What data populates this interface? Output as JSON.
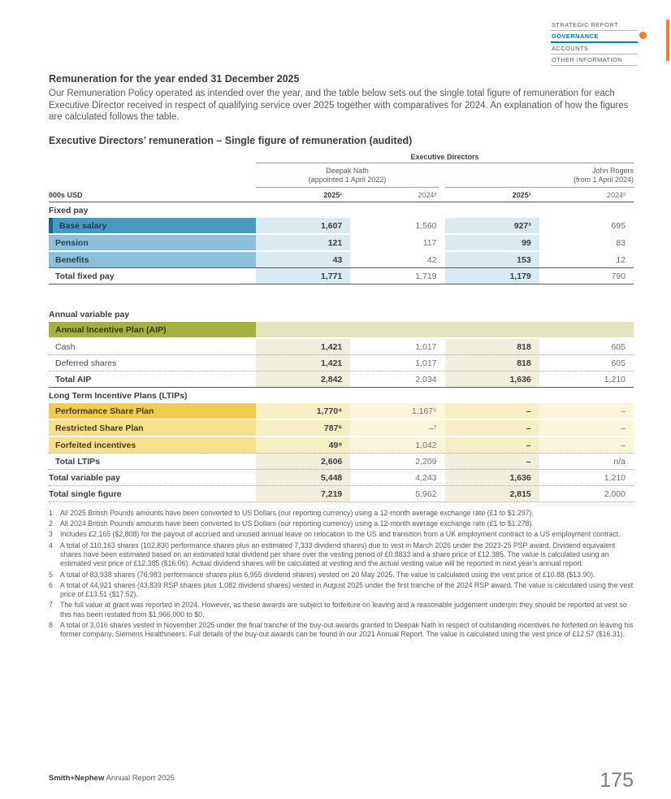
{
  "nav": {
    "items": [
      {
        "label": "STRATEGIC REPORT"
      },
      {
        "label": "GOVERNANCE"
      },
      {
        "label": "ACCOUNTS"
      },
      {
        "label": "OTHER INFORMATION"
      }
    ],
    "accent_color": "#ee801e",
    "active_color": "#0079a1"
  },
  "page": {
    "heading": "Remuneration for the year ended 31 December 2025",
    "intro": "Our Remuneration Policy operated as intended over the year, and the table below sets out the single total figure of remuneration for each Executive Director received in respect of qualifying service over 2025 together with comparatives for 2024. An explanation of how the figures are calculated follows the table.",
    "table_title": "Executive Directors’ remuneration – Single figure of remuneration (audited)"
  },
  "table": {
    "group_header": "Executive Directors",
    "director1_name": "Deepak Nath",
    "director1_sub": "(appointed 1 April 2022)",
    "director2_name": "John Rogers",
    "director2_sub": "(from 1 April 2024)",
    "unit_label": "000s USD",
    "col_headers": [
      "2025¹",
      "2024²",
      "2025¹",
      "2024²"
    ],
    "rows": [
      {
        "label": "Fixed pay",
        "values": []
      },
      {
        "label": "Base salary",
        "values": [
          "1,607",
          "1,560",
          "927³",
          "695"
        ]
      },
      {
        "label": "Pension",
        "values": [
          "121",
          "117",
          "99",
          "83"
        ]
      },
      {
        "label": "Benefits",
        "values": [
          "43",
          "42",
          "153",
          "12"
        ]
      },
      {
        "label": "Total fixed pay",
        "values": [
          "1,771",
          "1,719",
          "1,179",
          "790"
        ]
      },
      {
        "label": "Annual variable pay",
        "values": []
      },
      {
        "label": "Annual Incentive Plan (AIP)",
        "values": [
          "",
          "",
          "",
          ""
        ]
      },
      {
        "label": "Cash",
        "values": [
          "1,421",
          "1,017",
          "818",
          "605"
        ]
      },
      {
        "label": "Deferred shares",
        "values": [
          "1,421",
          "1,017",
          "818",
          "605"
        ]
      },
      {
        "label": "Total AIP",
        "values": [
          "2,842",
          "2,034",
          "1,636",
          "1,210"
        ]
      },
      {
        "label": "Long Term Incentive Plans (LTIPs)",
        "values": []
      },
      {
        "label": "Performance Share Plan",
        "values": [
          "1,770⁴",
          "1,167⁵",
          "–",
          "–"
        ]
      },
      {
        "label": "Restricted Share Plan",
        "values": [
          "787⁶",
          "–⁷",
          "–",
          "–"
        ]
      },
      {
        "label": "Forfeited incentives",
        "values": [
          "49⁸",
          "1,042",
          "–",
          "–"
        ]
      },
      {
        "label": "Total LTIPs",
        "values": [
          "2,606",
          "2,209",
          "–",
          "n/a"
        ]
      },
      {
        "label": "Total variable pay",
        "values": [
          "5,448",
          "4,243",
          "1,636",
          "1,210"
        ]
      },
      {
        "label": "Total single figure",
        "values": [
          "7,219",
          "5,962",
          "2,815",
          "2,000"
        ]
      }
    ]
  },
  "footnotes": [
    {
      "num": "1",
      "text": "All 2025 British Pounds amounts have been converted to US Dollars (our reporting currency) using a 12-month average exchange rate (£1 to $1.297)."
    },
    {
      "num": "2",
      "text": "All 2024 British Pounds amounts have been converted to US Dollars (our reporting currency) using a 12-month average exchange rate (£1 to $1.278)."
    },
    {
      "num": "3",
      "text": "Includes £2,165 ($2,808) for the payout of accrued and unused annual leave on relocation to the US and transition from a UK employment contract to a US employment contract."
    },
    {
      "num": "4",
      "text": "A total of 110,163 shares (102,830 performance shares plus an estimated 7,333 dividend shares) due to vest in March 2026 under the 2023-25 PSP award. Dividend equivalent shares have been estimated based on an estimated total dividend per share over the vesting period of £0.8833 and a share price of £12.385. The value is calculated using an estimated vest price of £12.385 ($16.06). Actual dividend shares will be calculated at vesting and the actual vesting value will be reported in next year’s annual report."
    },
    {
      "num": "5",
      "text": "A total of 83,938 shares (76,983 performance shares plus 6,955 dividend shares) vested on 20 May 2025. The value is calculated using the vest price of £10.88 ($13.90)."
    },
    {
      "num": "6",
      "text": "A total of 44,921 shares (43,839 RSP shares plus 1,082 dividend shares) vested in August 2025 under the first tranche of the 2024 RSP award. The value is calculated using the vest price of £13.51 ($17.52)."
    },
    {
      "num": "7",
      "text": "The full value at grant was reported in 2024. However, as these awards are subject to forfeiture on leaving and a reasonable judgement underpin they should be reported at vest so this has been restated from $1,966,000 to $0."
    },
    {
      "num": "8",
      "text": "A total of 3,016 shares vested in November 2025 under the final tranche of the buy-out awards granted to Deepak Nath in respect of outstanding incentives he forfeited on leaving his former company, Siemens Healthineers. Full details of the buy-out awards can be found in our 2021 Annual Report. The value is calculated using the vest price of £12.57 ($16.31)."
    }
  ],
  "footer": {
    "brand": "Smith+Nephew",
    "report": "Annual Report 2025",
    "page_number": "175"
  }
}
